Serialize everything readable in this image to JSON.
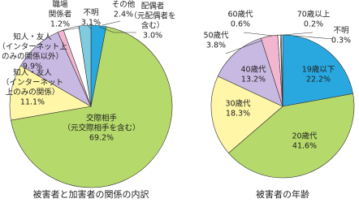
{
  "chart_data": [
    {
      "type": "pie",
      "title": "被害者と加害者の関係の内訳",
      "categories": [
        [
          "配偶者",
          "（元配偶者を",
          "含む）"
        ],
        [
          "交際相手",
          "（元交際相手を含む）"
        ],
        [
          "知人・友人",
          "（インターネット",
          "上のみの関係）"
        ],
        [
          "知人・友人",
          "（インターネット上",
          "のみの関係以外）"
        ],
        [
          "職場",
          "関係者"
        ],
        [
          "不明"
        ],
        [
          "その他"
        ]
      ],
      "values": [
        3.0,
        69.2,
        11.1,
        9.9,
        1.2,
        3.1,
        2.4
      ],
      "value_labels": [
        "3.0%",
        "69.2%",
        "11.1%",
        "9.9%",
        "1.2%",
        "3.1%",
        "2.4%"
      ],
      "colors": [
        "#29a8e0",
        "#b5d96a",
        "#fff6a8",
        "#c8b9e2",
        "#f3b6cf",
        "#ffffff",
        "#7fcbe0"
      ]
    },
    {
      "type": "pie",
      "title": "被害者の年齢",
      "categories": [
        [
          "19歳以下"
        ],
        [
          "20歳代"
        ],
        [
          "30歳代"
        ],
        [
          "40歳代"
        ],
        [
          "50歳代"
        ],
        [
          "60歳代"
        ],
        [
          "70歳以上"
        ],
        [
          "不明"
        ]
      ],
      "values": [
        22.2,
        41.6,
        18.3,
        13.2,
        3.8,
        0.6,
        0.2,
        0.3
      ],
      "value_labels": [
        "22.2%",
        "41.6%",
        "18.3%",
        "13.2%",
        "3.8%",
        "0.6%",
        "0.2%",
        "0.3%"
      ],
      "colors": [
        "#29a8e0",
        "#b5d96a",
        "#fff6a8",
        "#c8b9e2",
        "#f3b6cf",
        "#ffffff",
        "#ffffff",
        "#ffffff"
      ]
    }
  ]
}
